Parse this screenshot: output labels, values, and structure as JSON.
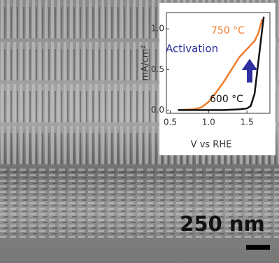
{
  "scale_bar": "250 nm",
  "chart_data": {
    "type": "line",
    "x_label": "V vs RHE",
    "y_label": "mA/cm²",
    "annotation": "Activation",
    "xlim": [
      0.45,
      1.8
    ],
    "ylim": [
      -0.04,
      1.2
    ],
    "xticks": [
      0.5,
      {
        "value": 1,
        "label": "1.0"
      },
      1.5
    ],
    "yticks": [
      {
        "value": 0,
        "label": "0.0"
      },
      0.5,
      {
        "value": 1,
        "label": "1.0"
      }
    ],
    "series": [
      {
        "name": "750 °C",
        "color": "#f07a2a",
        "x": [
          0.6,
          0.8,
          0.9,
          1.0,
          1.1,
          1.2,
          1.3,
          1.4,
          1.5,
          1.55,
          1.6,
          1.65,
          1.7
        ],
        "values": [
          0,
          0.01,
          0.03,
          0.1,
          0.22,
          0.35,
          0.5,
          0.65,
          0.75,
          0.8,
          0.85,
          0.95,
          1.12
        ]
      },
      {
        "name": "600 °C",
        "color": "#111111",
        "x": [
          0.6,
          1.2,
          1.4,
          1.5,
          1.55,
          1.6,
          1.65,
          1.7,
          1.72
        ],
        "values": [
          0,
          0,
          0.01,
          0.02,
          0.05,
          0.2,
          0.6,
          1.0,
          1.15
        ]
      }
    ]
  }
}
